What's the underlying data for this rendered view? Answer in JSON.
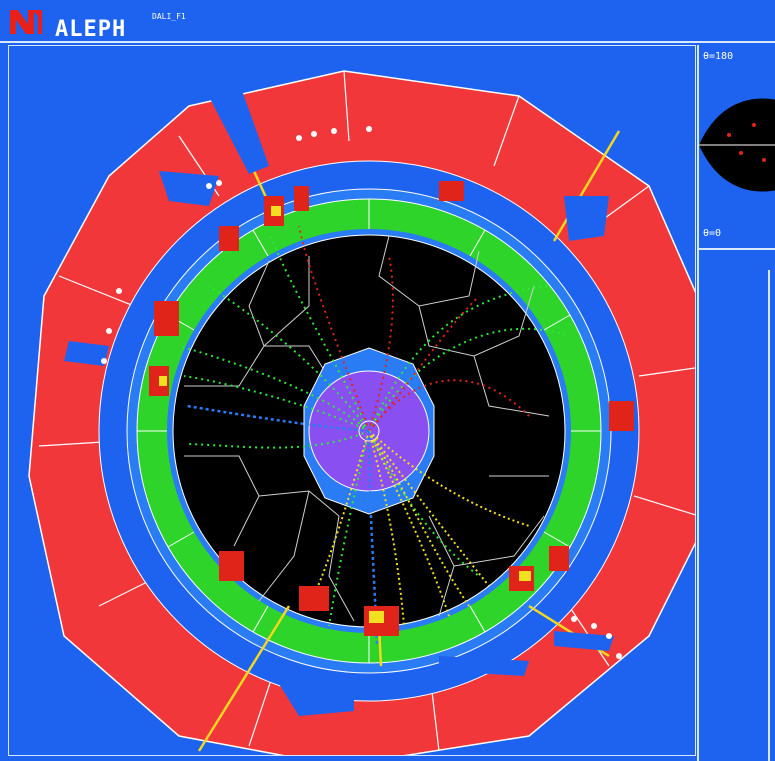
{
  "header": {
    "app_title": "ALEPH",
    "window_label": "DALI_F1",
    "logo_icon": "aleph-logo-icon"
  },
  "side_panel": {
    "top_label": "θ=180",
    "bottom_label": "θ=0"
  },
  "colors": {
    "background": "#1e63f0",
    "hcal": "#f2373a",
    "ecal": "#2ed42a",
    "tracker": "#000000",
    "vertex": "#8a4ff0",
    "track_green": "#2ee83a",
    "track_red": "#e0241a",
    "track_yellow": "#f0e020",
    "track_blue": "#1e63f0",
    "energy_deposit": "#f0d820"
  }
}
